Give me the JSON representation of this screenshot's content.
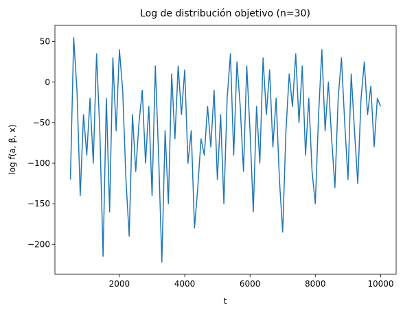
{
  "chart_data": {
    "type": "line",
    "title": "Log de distribución objetivo (n=30)",
    "x_label": "t",
    "y_label": "log f(a, β, x)",
    "x": [
      500,
      600,
      700,
      800,
      900,
      1000,
      1100,
      1200,
      1300,
      1400,
      1500,
      1600,
      1700,
      1800,
      1900,
      2000,
      2100,
      2200,
      2300,
      2400,
      2500,
      2600,
      2700,
      2800,
      2900,
      3000,
      3100,
      3200,
      3300,
      3400,
      3500,
      3600,
      3700,
      3800,
      3900,
      4000,
      4100,
      4200,
      4300,
      4400,
      4500,
      4600,
      4700,
      4800,
      4900,
      5000,
      5100,
      5200,
      5300,
      5400,
      5500,
      5600,
      5700,
      5800,
      5900,
      6000,
      6100,
      6200,
      6300,
      6400,
      6500,
      6600,
      6700,
      6800,
      6900,
      7000,
      7100,
      7200,
      7300,
      7400,
      7500,
      7600,
      7700,
      7800,
      7900,
      8000,
      8100,
      8200,
      8300,
      8400,
      8500,
      8600,
      8700,
      8800,
      8900,
      9000,
      9100,
      9200,
      9300,
      9400,
      9500,
      9600,
      9700,
      9800,
      9900,
      10000
    ],
    "series": [
      {
        "color": "#1f77b4",
        "values": [
          -120,
          55,
          -10,
          -140,
          -40,
          -90,
          -20,
          -100,
          35,
          -60,
          -215,
          -20,
          -160,
          30,
          -60,
          40,
          -10,
          -120,
          -190,
          -40,
          -110,
          -50,
          -10,
          -100,
          -30,
          -140,
          20,
          -90,
          -222,
          -60,
          -150,
          10,
          -70,
          20,
          -40,
          15,
          -100,
          -60,
          -180,
          -130,
          -70,
          -90,
          -30,
          -80,
          -10,
          -120,
          -40,
          -150,
          -20,
          35,
          -90,
          25,
          -30,
          -110,
          20,
          -60,
          -160,
          -30,
          -100,
          30,
          -40,
          15,
          -80,
          -20,
          -120,
          -185,
          -60,
          10,
          -30,
          35,
          -50,
          20,
          -90,
          -20,
          -110,
          -150,
          -40,
          40,
          -60,
          0,
          -70,
          -130,
          -20,
          30,
          -50,
          -120,
          10,
          -60,
          -125,
          -20,
          25,
          -40,
          -5,
          -80,
          -20,
          -30
        ]
      }
    ],
    "xlim": [
      25,
      10475
    ],
    "ylim": [
      -237,
      70
    ],
    "xticks": [
      2000,
      4000,
      6000,
      8000,
      10000
    ],
    "yticks": [
      {
        "value": -200,
        "label": "−200"
      },
      {
        "value": -150,
        "label": "−150"
      },
      {
        "value": -100,
        "label": "−100"
      },
      {
        "value": -50,
        "label": "−50"
      },
      0,
      50
    ]
  }
}
